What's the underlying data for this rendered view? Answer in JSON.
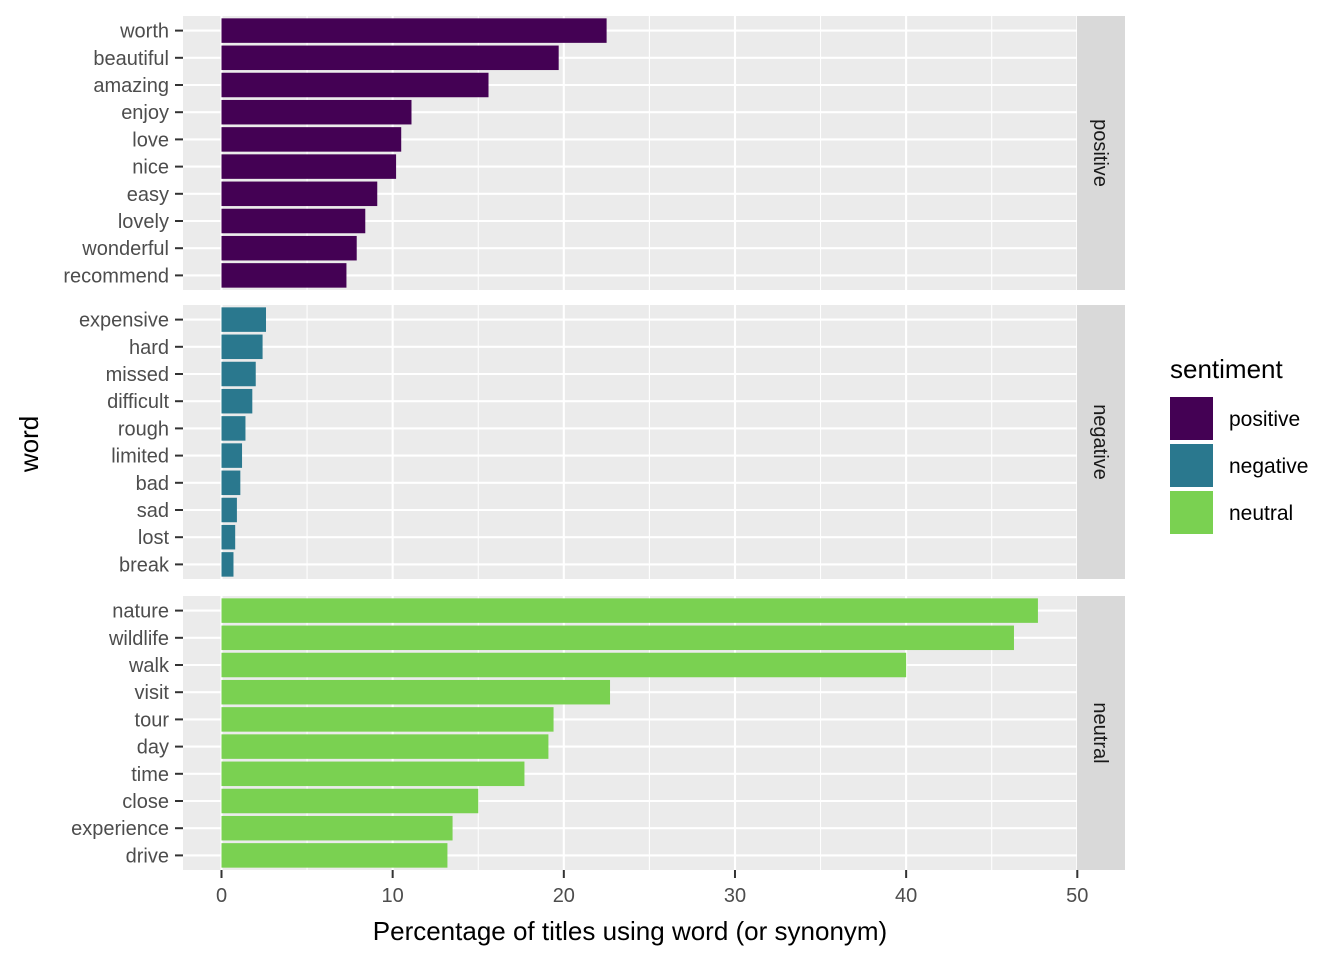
{
  "chart_data": {
    "type": "bar",
    "orientation": "horizontal",
    "xlabel": "Percentage of titles using word (or synonym)",
    "ylabel": "word",
    "xlim": [
      0,
      50
    ],
    "xticks": [
      0,
      10,
      20,
      30,
      40,
      50
    ],
    "grid": true,
    "legend": {
      "title": "sentiment",
      "position": "right",
      "entries": [
        {
          "label": "positive",
          "color": "#440154"
        },
        {
          "label": "negative",
          "color": "#2A788E"
        },
        {
          "label": "neutral",
          "color": "#7AD151"
        }
      ]
    },
    "facets": [
      {
        "label": "positive",
        "color": "#440154",
        "categories": [
          "worth",
          "beautiful",
          "amazing",
          "enjoy",
          "love",
          "nice",
          "easy",
          "lovely",
          "wonderful",
          "recommend"
        ],
        "values": [
          22.5,
          19.7,
          15.6,
          11.1,
          10.5,
          10.2,
          9.1,
          8.4,
          7.9,
          7.3
        ]
      },
      {
        "label": "negative",
        "color": "#2A788E",
        "categories": [
          "expensive",
          "hard",
          "missed",
          "difficult",
          "rough",
          "limited",
          "bad",
          "sad",
          "lost",
          "break"
        ],
        "values": [
          2.6,
          2.4,
          2.0,
          1.8,
          1.4,
          1.2,
          1.1,
          0.9,
          0.8,
          0.7
        ]
      },
      {
        "label": "neutral",
        "color": "#7AD151",
        "categories": [
          "nature",
          "wildlife",
          "walk",
          "visit",
          "tour",
          "day",
          "time",
          "close",
          "experience",
          "drive"
        ],
        "values": [
          47.7,
          46.3,
          40.0,
          22.7,
          19.4,
          19.1,
          17.7,
          15.0,
          13.5,
          13.2
        ]
      }
    ]
  }
}
